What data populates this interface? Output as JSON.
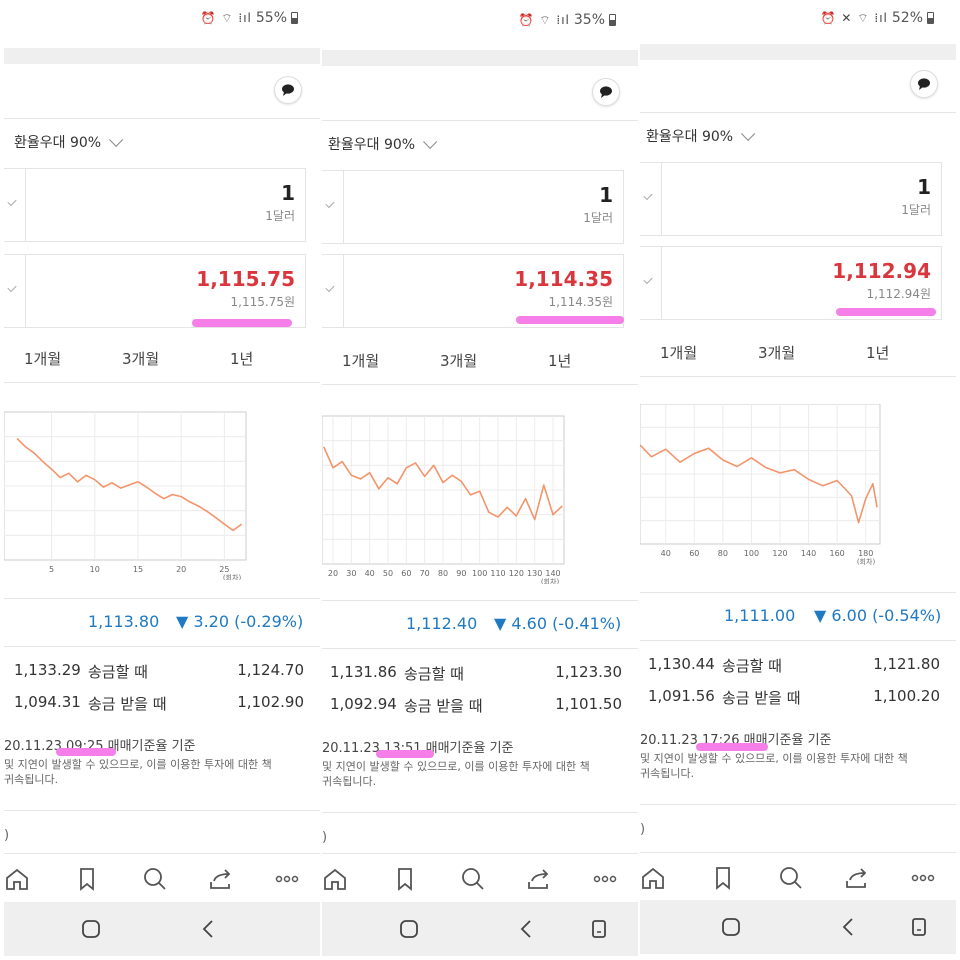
{
  "panels": [
    {
      "status": {
        "battery": "55%"
      },
      "preference": "환율우대 90%",
      "from_amount": {
        "value": "1",
        "unit": "1달러"
      },
      "to_amount": {
        "value": "1,115.75",
        "unit": "1,115.75원"
      },
      "periods": [
        "1개월",
        "3개월",
        "1년"
      ],
      "chart_data": {
        "type": "line",
        "x_ticks": [
          "5",
          "10",
          "15",
          "20",
          "25"
        ],
        "x_unit": "(회차)",
        "x": [
          1,
          2,
          3,
          4,
          5,
          6,
          7,
          8,
          9,
          10,
          11,
          12,
          13,
          14,
          15,
          16,
          17,
          18,
          19,
          20,
          21,
          22,
          23,
          24,
          25,
          26,
          27
        ],
        "values": [
          1129.5,
          1128.7,
          1128.1,
          1127.3,
          1126.6,
          1125.8,
          1126.2,
          1125.4,
          1126.0,
          1125.6,
          1124.9,
          1125.3,
          1124.8,
          1125.1,
          1125.4,
          1124.9,
          1124.3,
          1123.8,
          1124.2,
          1124.0,
          1123.5,
          1123.1,
          1122.6,
          1122.0,
          1121.4,
          1120.8,
          1121.4
        ],
        "grid": true,
        "color": "#f2956b"
      },
      "base_rate": "1,113.80",
      "change": "▼ 3.20 (-0.29%)",
      "rows": [
        {
          "left": "1,133.29",
          "label": "송금할 때",
          "right": "1,124.70"
        },
        {
          "left": "1,094.31",
          "label": "송금 받을 때",
          "right": "1,102.90"
        }
      ],
      "basis_date": "20.11.23",
      "basis_time": "09:25",
      "basis_label": "매매기준율 기준",
      "notes": [
        "및 지연이 발생할 수 있으므로, 이를 이용한 투자에 대한 책",
        "귀속됩니다."
      ],
      "paren": ")"
    },
    {
      "status": {
        "battery": "35%"
      },
      "preference": "환율우대 90%",
      "from_amount": {
        "value": "1",
        "unit": "1달러"
      },
      "to_amount": {
        "value": "1,114.35",
        "unit": "1,114.35원"
      },
      "periods": [
        "1개월",
        "3개월",
        "1년"
      ],
      "chart_data": {
        "type": "line",
        "x_ticks": [
          "20",
          "30",
          "40",
          "50",
          "60",
          "70",
          "80",
          "90",
          "100",
          "110",
          "120",
          "130",
          "140"
        ],
        "x_unit": "(회차)",
        "x": [
          15,
          20,
          25,
          30,
          35,
          40,
          45,
          50,
          55,
          60,
          65,
          70,
          75,
          80,
          85,
          90,
          95,
          100,
          105,
          110,
          115,
          120,
          125,
          130,
          135,
          140,
          145
        ],
        "values": [
          1126.5,
          1124.8,
          1125.3,
          1124.2,
          1123.9,
          1124.4,
          1123.1,
          1124.0,
          1123.5,
          1124.8,
          1125.2,
          1124.1,
          1125.0,
          1123.6,
          1124.2,
          1123.7,
          1122.6,
          1122.9,
          1121.2,
          1120.8,
          1121.6,
          1120.9,
          1122.3,
          1120.6,
          1123.4,
          1121.0,
          1121.7
        ],
        "grid": true,
        "color": "#f2956b"
      },
      "base_rate": "1,112.40",
      "change": "▼ 4.60 (-0.41%)",
      "rows": [
        {
          "left": "1,131.86",
          "label": "송금할 때",
          "right": "1,123.30"
        },
        {
          "left": "1,092.94",
          "label": "송금 받을 때",
          "right": "1,101.50"
        }
      ],
      "basis_date": "20.11.23",
      "basis_time": "13:51",
      "basis_label": "매매기준율 기준",
      "notes": [
        "및 지연이 발생할 수 있으므로, 이를 이용한 투자에 대한 책",
        "귀속됩니다."
      ],
      "paren": ")"
    },
    {
      "status": {
        "battery": "52%"
      },
      "preference": "환율우대 90%",
      "from_amount": {
        "value": "1",
        "unit": "1달러"
      },
      "to_amount": {
        "value": "1,112.94",
        "unit": "1,112.94원"
      },
      "periods": [
        "1개월",
        "3개월",
        "1년"
      ],
      "chart_data": {
        "type": "line",
        "x_ticks": [
          "40",
          "60",
          "80",
          "100",
          "120",
          "140",
          "160",
          "180"
        ],
        "x_unit": "(회차)",
        "x": [
          22,
          30,
          40,
          50,
          60,
          70,
          80,
          90,
          100,
          110,
          120,
          130,
          140,
          150,
          160,
          170,
          175,
          180,
          185,
          188
        ],
        "values": [
          1126.2,
          1125.1,
          1125.8,
          1124.6,
          1125.4,
          1125.9,
          1124.8,
          1124.2,
          1125.0,
          1124.1,
          1123.6,
          1123.9,
          1123.0,
          1122.4,
          1122.9,
          1121.5,
          1119.0,
          1121.2,
          1122.6,
          1120.4
        ],
        "grid": true,
        "color": "#f2956b"
      },
      "base_rate": "1,111.00",
      "change": "▼ 6.00 (-0.54%)",
      "rows": [
        {
          "left": "1,130.44",
          "label": "송금할 때",
          "right": "1,121.80"
        },
        {
          "left": "1,091.56",
          "label": "송금 받을 때",
          "right": "1,100.20"
        }
      ],
      "basis_date": "20.11.23",
      "basis_time": "17:26",
      "basis_label": "매매기준율 기준",
      "notes": [
        "및 지연이 발생할 수 있으므로, 이를 이용한 투자에 대한 책",
        "귀속됩니다."
      ],
      "paren": ")"
    }
  ],
  "colors": {
    "accent_red": "#d9363e",
    "accent_blue": "#1f7ac4",
    "highlight": "#f57ee8",
    "line": "#f2956b"
  },
  "icons": {
    "nav": [
      "home-icon",
      "bookmark-icon",
      "search-icon",
      "share-icon",
      "more-icon"
    ],
    "system": [
      "home-circle-icon",
      "back-icon",
      "recents-icon"
    ]
  }
}
